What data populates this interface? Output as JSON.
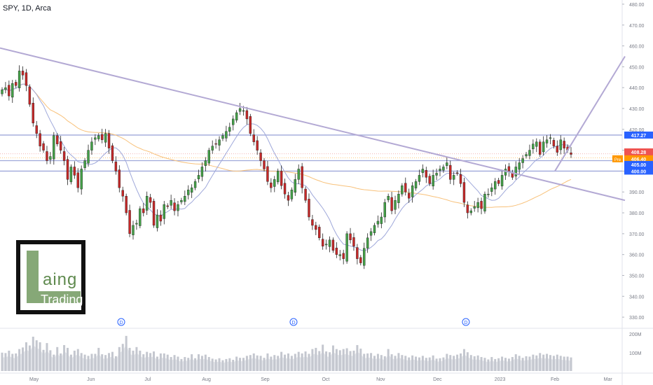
{
  "header": {
    "title": "SPY, 1D, Arca"
  },
  "logo": {
    "word1": "aing",
    "word2": "Trading",
    "brand_color": "#86a877"
  },
  "colors": {
    "up": "#26a69a",
    "down": "#ef5350",
    "candle_up": "#43a047",
    "candle_down": "#c62828",
    "trendline": "#b3a9d4",
    "ma_fast": "#9fa8da",
    "ma_slow": "#f8c17a",
    "hline": "#9fa8da"
  },
  "chart_data": {
    "type": "candlestick",
    "symbol": "SPY",
    "interval": "1D",
    "exchange": "Arca",
    "ylim": [
      325,
      482
    ],
    "y_ticks": [
      330,
      340,
      350,
      360,
      370,
      380,
      390,
      400,
      410,
      420,
      430,
      440,
      450,
      460,
      470,
      480
    ],
    "x_labels": [
      {
        "label": "May",
        "date": "2022-05-02"
      },
      {
        "label": "Jun",
        "date": "2022-06-01"
      },
      {
        "label": "Jul",
        "date": "2022-07-01"
      },
      {
        "label": "Aug",
        "date": "2022-08-01"
      },
      {
        "label": "Sep",
        "date": "2022-09-01"
      },
      {
        "label": "Oct",
        "date": "2022-10-03"
      },
      {
        "label": "Nov",
        "date": "2022-11-01"
      },
      {
        "label": "Dec",
        "date": "2022-12-01"
      },
      {
        "label": "2023",
        "date": "2023-01-03"
      },
      {
        "label": "Feb",
        "date": "2023-02-01"
      },
      {
        "label": "Mar",
        "date": "2023-03-01"
      }
    ],
    "price_levels": [
      {
        "label": "417.27",
        "value": 417.27,
        "color": "#2962ff"
      },
      {
        "label": "408.28",
        "value": 408.28,
        "color": "#ef5350"
      },
      {
        "label": "406.40",
        "value": 406.4,
        "color": "#ff9800",
        "tag": "Pre"
      },
      {
        "label": "405.00",
        "value": 405.0,
        "color": "#2962ff"
      },
      {
        "label": "400.00",
        "value": 400.0,
        "color": "#2962ff"
      }
    ],
    "horizontal_lines": [
      417.27,
      405.0,
      400.0
    ],
    "trendlines": [
      {
        "from": {
          "date": "2022-04-14",
          "price": 459
        },
        "to": {
          "date": "2023-03-10",
          "price": 386
        }
      },
      {
        "from": {
          "date": "2023-02-01",
          "price": 400
        },
        "to": {
          "date": "2023-03-10",
          "price": 455
        }
      }
    ],
    "dividend_markers": [
      {
        "label": "D",
        "date": "2022-06-17"
      },
      {
        "label": "D",
        "date": "2022-09-16"
      },
      {
        "label": "D",
        "date": "2022-12-16"
      }
    ],
    "volume_axis": [
      "200M",
      "100M"
    ],
    "closes": [
      439,
      440,
      436,
      442,
      441,
      448,
      446,
      441,
      432,
      423,
      418,
      412,
      410,
      405,
      407,
      417,
      413,
      410,
      405,
      396,
      402,
      398,
      392,
      401,
      405,
      410,
      414,
      416,
      417,
      415,
      418,
      411,
      405,
      400,
      392,
      388,
      380,
      370,
      374,
      375,
      382,
      380,
      388,
      385,
      374,
      379,
      376,
      384,
      383,
      386,
      381,
      384,
      386,
      388,
      391,
      392,
      395,
      398,
      402,
      405,
      410,
      412,
      413,
      415,
      417,
      419,
      421,
      425,
      428,
      430,
      429,
      425,
      418,
      414,
      410,
      405,
      401,
      395,
      392,
      396,
      400,
      393,
      389,
      386,
      391,
      396,
      401,
      392,
      386,
      378,
      374,
      372,
      368,
      364,
      365,
      367,
      362,
      360,
      360,
      358,
      370,
      367,
      364,
      358,
      356,
      363,
      368,
      371,
      374,
      376,
      378,
      385,
      388,
      381,
      386,
      389,
      393,
      390,
      387,
      393,
      395,
      398,
      401,
      397,
      394,
      398,
      399,
      401,
      402,
      404,
      396,
      398,
      399,
      394,
      385,
      380,
      381,
      383,
      385,
      382,
      389,
      389,
      392,
      395,
      394,
      398,
      401,
      400,
      397,
      402,
      404,
      406,
      408,
      410,
      413,
      414,
      408,
      414,
      415,
      416,
      412,
      409,
      415,
      411,
      410,
      408
    ],
    "volume_levels": [
      0.46,
      0.45,
      0.51,
      0.43,
      0.44,
      0.55,
      0.59,
      0.72,
      0.64,
      0.86,
      0.77,
      0.72,
      0.53,
      0.7,
      0.52,
      0.41,
      0.6,
      0.44,
      0.65,
      0.58,
      0.41,
      0.51,
      0.55,
      0.45,
      0.41,
      0.38,
      0.43,
      0.43,
      0.58,
      0.42,
      0.4,
      0.45,
      0.48,
      0.37,
      0.6,
      0.68,
      0.88,
      0.58,
      0.51,
      0.6,
      0.51,
      0.42,
      0.48,
      0.45,
      0.49,
      0.36,
      0.44,
      0.44,
      0.41,
      0.35,
      0.4,
      0.36,
      0.3,
      0.35,
      0.33,
      0.42,
      0.32,
      0.42,
      0.38,
      0.41,
      0.35,
      0.31,
      0.29,
      0.32,
      0.27,
      0.3,
      0.32,
      0.28,
      0.36,
      0.33,
      0.33,
      0.38,
      0.4,
      0.44,
      0.39,
      0.38,
      0.33,
      0.44,
      0.36,
      0.4,
      0.38,
      0.48,
      0.41,
      0.44,
      0.38,
      0.43,
      0.48,
      0.44,
      0.49,
      0.43,
      0.55,
      0.58,
      0.5,
      0.66,
      0.49,
      0.47,
      0.64,
      0.55,
      0.52,
      0.55,
      0.57,
      0.5,
      0.51,
      0.65,
      0.56,
      0.43,
      0.44,
      0.45,
      0.38,
      0.43,
      0.4,
      0.37,
      0.55,
      0.42,
      0.38,
      0.45,
      0.4,
      0.38,
      0.34,
      0.39,
      0.36,
      0.34,
      0.38,
      0.33,
      0.34,
      0.39,
      0.31,
      0.32,
      0.34,
      0.43,
      0.4,
      0.38,
      0.41,
      0.44,
      0.55,
      0.47,
      0.4,
      0.37,
      0.39,
      0.35,
      0.33,
      0.29,
      0.35,
      0.3,
      0.32,
      0.36,
      0.33,
      0.31,
      0.35,
      0.42,
      0.38,
      0.33,
      0.37,
      0.36,
      0.41,
      0.39,
      0.45,
      0.41,
      0.43,
      0.4,
      0.38,
      0.41,
      0.38,
      0.36,
      0.36,
      0.34
    ]
  }
}
